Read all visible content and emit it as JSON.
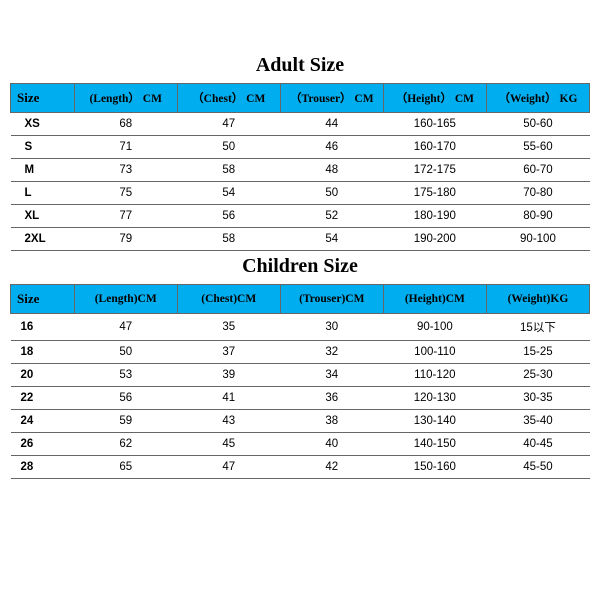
{
  "adult": {
    "title": "Adult Size",
    "columns": [
      "Size",
      "(Length） CM",
      "（Chest） CM",
      "（Trouser） CM",
      "（Height） CM",
      "（Weight） KG"
    ],
    "rows": [
      [
        "XS",
        "68",
        "47",
        "44",
        "160-165",
        "50-60"
      ],
      [
        "S",
        "71",
        "50",
        "46",
        "160-170",
        "55-60"
      ],
      [
        "M",
        "73",
        "58",
        "48",
        "172-175",
        "60-70"
      ],
      [
        "L",
        "75",
        "54",
        "50",
        "175-180",
        "70-80"
      ],
      [
        "XL",
        "77",
        "56",
        "52",
        "180-190",
        "80-90"
      ],
      [
        "2XL",
        "79",
        "58",
        "54",
        "190-200",
        "90-100"
      ]
    ]
  },
  "children": {
    "title": "Children Size",
    "columns": [
      "Size",
      "(Length)CM",
      "(Chest)CM",
      "(Trouser)CM",
      "(Height)CM",
      "(Weight)KG"
    ],
    "rows": [
      [
        "16",
        "47",
        "35",
        "30",
        "90-100",
        "15以下"
      ],
      [
        "18",
        "50",
        "37",
        "32",
        "100-110",
        "15-25"
      ],
      [
        "20",
        "53",
        "39",
        "34",
        "110-120",
        "25-30"
      ],
      [
        "22",
        "56",
        "41",
        "36",
        "120-130",
        "30-35"
      ],
      [
        "24",
        "59",
        "43",
        "38",
        "130-140",
        "35-40"
      ],
      [
        "26",
        "62",
        "45",
        "40",
        "140-150",
        "40-45"
      ],
      [
        "28",
        "65",
        "47",
        "42",
        "150-160",
        "45-50"
      ]
    ]
  },
  "style": {
    "header_bg": "#00aeef",
    "border_color": "#666666",
    "title_fontsize": 20,
    "cell_fontsize": 11.5
  }
}
